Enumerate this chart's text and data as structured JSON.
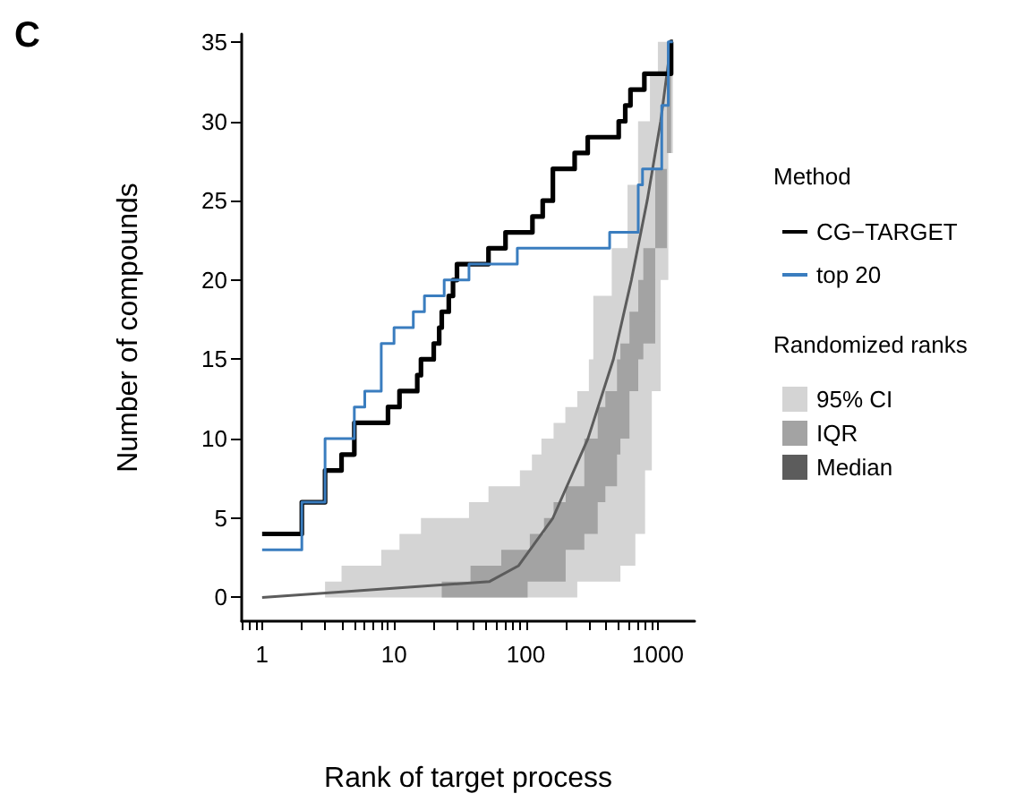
{
  "chart_data": {
    "type": "step",
    "xlabel": "Rank of target process",
    "ylabel": "Number of compounds",
    "legend_title": "Method",
    "annotations": [
      "C",
      "Randomized ranks"
    ],
    "log": "x",
    "xlim": [
      0.7,
      1900
    ],
    "ylim": [
      -1.5,
      35.5
    ],
    "xticks": [
      {
        "value": 0.7,
        "label": null
      },
      {
        "value": 0.8,
        "label": null
      },
      {
        "value": 0.9,
        "label": null
      },
      1,
      {
        "value": 2,
        "label": null
      },
      {
        "value": 3,
        "label": null
      },
      {
        "value": 4,
        "label": null
      },
      {
        "value": 5,
        "label": null
      },
      {
        "value": 6,
        "label": null
      },
      {
        "value": 7,
        "label": null
      },
      {
        "value": 8,
        "label": null
      },
      {
        "value": 9,
        "label": null
      },
      10,
      {
        "value": 20,
        "label": null
      },
      {
        "value": 30,
        "label": null
      },
      {
        "value": 40,
        "label": null
      },
      {
        "value": 50,
        "label": null
      },
      {
        "value": 60,
        "label": null
      },
      {
        "value": 70,
        "label": null
      },
      {
        "value": 80,
        "label": null
      },
      {
        "value": 90,
        "label": null
      },
      100,
      {
        "value": 200,
        "label": null
      },
      {
        "value": 300,
        "label": null
      },
      {
        "value": 400,
        "label": null
      },
      {
        "value": 500,
        "label": null
      },
      {
        "value": 600,
        "label": null
      },
      {
        "value": 700,
        "label": null
      },
      {
        "value": 800,
        "label": null
      },
      {
        "value": 900,
        "label": null
      },
      1000
    ],
    "yticks": [
      0,
      5,
      10,
      15,
      20,
      25,
      30,
      35
    ],
    "grid": false,
    "legend": "right",
    "marker": "none",
    "series": [
      {
        "name": "95% CI",
        "type": "area",
        "color": "#d4d4d4",
        "x": [
          3,
          4,
          8,
          11,
          16,
          37,
          52,
          90,
          111,
          131,
          162,
          199,
          245,
          300,
          324,
          447,
          520,
          589,
          675,
          708,
          800,
          871,
          900,
          1000,
          1050,
          1200,
          1300
        ],
        "values": [
          null,
          null,
          null,
          null,
          null,
          null,
          null,
          null,
          null,
          null,
          null,
          null,
          null,
          null,
          null,
          null,
          null,
          null,
          null,
          null,
          null,
          null,
          null,
          null,
          null,
          null,
          null
        ],
        "lower": [
          0,
          0,
          0,
          0,
          0,
          0,
          0,
          0,
          0,
          0,
          0,
          0,
          1,
          1,
          1,
          1,
          2,
          2,
          4,
          4,
          8,
          8,
          13,
          13,
          20,
          28,
          35
        ],
        "upper": [
          1,
          2,
          3,
          4,
          5,
          6,
          7,
          8,
          9,
          10,
          11,
          12,
          13,
          15,
          19,
          22,
          22,
          26,
          26,
          30,
          30,
          33,
          33,
          35,
          35,
          35,
          35
        ]
      },
      {
        "name": "IQR",
        "type": "area",
        "color": "#a3a3a3",
        "x": [
          23,
          38,
          65,
          103,
          107,
          137,
          162,
          200,
          277,
          350,
          400,
          490,
          520,
          609,
          710,
          776,
          955,
          1170,
          1260
        ],
        "values": [
          null,
          null,
          null,
          null,
          null,
          null,
          null,
          null,
          null,
          null,
          null,
          null,
          null,
          null,
          null,
          null,
          null,
          null,
          null
        ],
        "lower": [
          0,
          0,
          0,
          1,
          1,
          1,
          1,
          3,
          4,
          6,
          7,
          9,
          10,
          13,
          15,
          16,
          22,
          28,
          35
        ],
        "upper": [
          1,
          2,
          3,
          3,
          4,
          5,
          6,
          7,
          10,
          12,
          13,
          15,
          16,
          18,
          20,
          22,
          27,
          35,
          35
        ]
      },
      {
        "name": "Median",
        "type": "line",
        "color": "#5c5c5c",
        "x": [
          1,
          53,
          88,
          160,
          295,
          460,
          630,
          830,
          1050,
          1260
        ],
        "values": [
          0,
          1,
          2,
          5,
          10,
          15,
          20,
          25,
          30,
          35
        ]
      },
      {
        "name": "CG−TARGET",
        "type": "step",
        "color": "#000000",
        "x": [
          1,
          2,
          3,
          4,
          5,
          9,
          11,
          15,
          16,
          20,
          22,
          23,
          26,
          28,
          30,
          52,
          70,
          112,
          134,
          160,
          234,
          294,
          505,
          566,
          620,
          790,
          1260,
          1300
        ],
        "values": [
          4,
          6,
          8,
          9,
          11,
          12,
          13,
          14,
          15,
          16,
          17,
          18,
          19,
          20,
          21,
          22,
          23,
          24,
          25,
          27,
          28,
          29,
          30,
          31,
          32,
          33,
          35,
          35
        ]
      },
      {
        "name": "top 20",
        "type": "step",
        "color": "#3a7dbf",
        "x": [
          1,
          2,
          3,
          5,
          6,
          8,
          10,
          14,
          17,
          24,
          37,
          86,
          431,
          710,
          765,
          1070,
          1200,
          1300
        ],
        "values": [
          3,
          6,
          10,
          12,
          13,
          16,
          17,
          18,
          19,
          20,
          21,
          22,
          23,
          26,
          27,
          31,
          35,
          35
        ]
      }
    ]
  }
}
